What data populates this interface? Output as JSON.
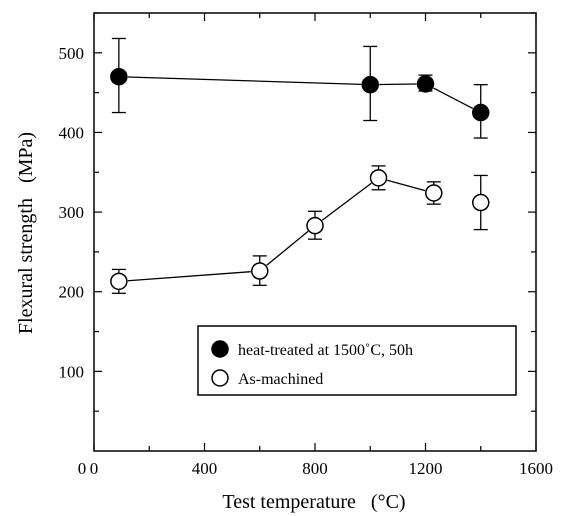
{
  "chart_data": {
    "type": "scatter",
    "xlabel": "Test temperature   (°C)",
    "ylabel": "Flexural strength   (MPa)",
    "xlim": [
      0,
      1600
    ],
    "ylim": [
      0,
      550
    ],
    "xticks": [
      0,
      400,
      800,
      1200,
      1600
    ],
    "yticks": [
      100,
      200,
      300,
      400,
      500
    ],
    "xtick_labels": [
      "0",
      "400",
      "800",
      "1200",
      "1600"
    ],
    "ytick_labels": [
      "100",
      "200",
      "300",
      "400",
      "500"
    ],
    "legend_position": "lower-right",
    "series": [
      {
        "name": "heat-treated at 1500˚C, 50h",
        "marker": "filled-circle",
        "color": "#000000",
        "points": [
          {
            "x": 90,
            "y": 470,
            "err_low": 425,
            "err_high": 518
          },
          {
            "x": 1000,
            "y": 460,
            "err_low": 415,
            "err_high": 508
          },
          {
            "x": 1200,
            "y": 461,
            "err_low": 452,
            "err_high": 472
          },
          {
            "x": 1400,
            "y": 425,
            "err_low": 393,
            "err_high": 460
          }
        ],
        "line_segments": [
          [
            0,
            1
          ],
          [
            1,
            2
          ],
          [
            2,
            3
          ]
        ]
      },
      {
        "name": "As-machined",
        "marker": "open-circle",
        "color": "#000000",
        "points": [
          {
            "x": 90,
            "y": 213,
            "err_low": 198,
            "err_high": 228
          },
          {
            "x": 600,
            "y": 226,
            "err_low": 208,
            "err_high": 245
          },
          {
            "x": 800,
            "y": 283,
            "err_low": 266,
            "err_high": 301
          },
          {
            "x": 1030,
            "y": 343,
            "err_low": 328,
            "err_high": 358
          },
          {
            "x": 1230,
            "y": 324,
            "err_low": 310,
            "err_high": 338
          },
          {
            "x": 1400,
            "y": 312,
            "err_low": 278,
            "err_high": 346
          }
        ],
        "line_segments": [
          [
            0,
            1
          ],
          [
            1,
            2
          ],
          [
            2,
            3
          ],
          [
            3,
            4
          ]
        ]
      }
    ]
  }
}
